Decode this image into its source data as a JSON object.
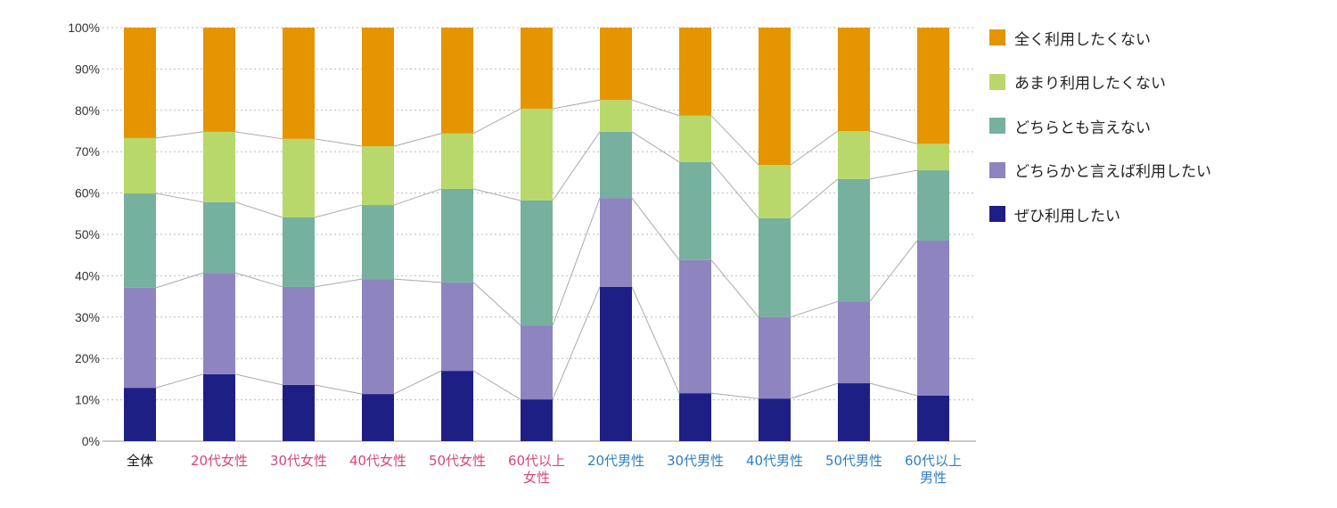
{
  "chart_data": {
    "type": "bar",
    "stacked": true,
    "title": "",
    "xlabel": "",
    "ylabel": "",
    "ylim": [
      0,
      100
    ],
    "yticks": [
      "0%",
      "10%",
      "20%",
      "30%",
      "40%",
      "50%",
      "60%",
      "70%",
      "80%",
      "90%",
      "100%"
    ],
    "categories": [
      {
        "label": "全体",
        "group": "all"
      },
      {
        "label": "20代女性",
        "group": "female"
      },
      {
        "label": "30代女性",
        "group": "female"
      },
      {
        "label": "40代女性",
        "group": "female"
      },
      {
        "label": "50代女性",
        "group": "female"
      },
      {
        "label": "60代以上\n女性",
        "group": "female"
      },
      {
        "label": "20代男性",
        "group": "male"
      },
      {
        "label": "30代男性",
        "group": "male"
      },
      {
        "label": "40代男性",
        "group": "male"
      },
      {
        "label": "50代男性",
        "group": "male"
      },
      {
        "label": "60代以上\n男性",
        "group": "male"
      }
    ],
    "group_colors": {
      "all": "#111111",
      "female": "#D6457A",
      "male": "#2E7FC2"
    },
    "series": [
      {
        "name": "ぜひ利用したい",
        "color": "#1E1F85",
        "values": [
          12.9,
          16.2,
          13.6,
          11.4,
          17.0,
          10.1,
          37.3,
          11.6,
          10.3,
          14.0,
          11.0
        ]
      },
      {
        "name": "どちらかと言えば利用したい",
        "color": "#8E84C0",
        "values": [
          24.2,
          24.5,
          23.7,
          27.8,
          21.4,
          17.9,
          21.5,
          32.2,
          19.7,
          19.8,
          37.5
        ]
      },
      {
        "name": "どちらとも言えない",
        "color": "#76B09E",
        "values": [
          22.8,
          17.1,
          16.8,
          17.9,
          22.6,
          30.2,
          16.0,
          23.7,
          23.9,
          29.6,
          17.0
        ]
      },
      {
        "name": "あまり利用したくない",
        "color": "#B8D86B",
        "values": [
          13.4,
          17.0,
          19.0,
          14.2,
          13.4,
          22.2,
          7.7,
          11.2,
          12.9,
          11.6,
          6.4
        ]
      },
      {
        "name": "全く利用したくない",
        "color": "#E59500",
        "values": [
          26.7,
          25.2,
          26.9,
          28.7,
          25.6,
          19.6,
          17.5,
          21.3,
          33.2,
          25.0,
          28.1
        ]
      }
    ],
    "legend_position": "right",
    "legend_order": [
      4,
      3,
      2,
      1,
      0
    ],
    "grid": true
  }
}
